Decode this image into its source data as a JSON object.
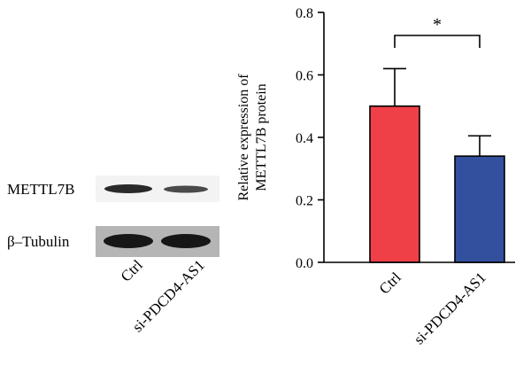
{
  "blot": {
    "row_labels": [
      "METTL7B",
      "β–Tubulin"
    ],
    "lane_labels": [
      "Ctrl",
      "si-PDCD4-AS1"
    ]
  },
  "chart_data": {
    "type": "bar",
    "categories": [
      "Ctrl",
      "si-PDCD4-AS1"
    ],
    "values": [
      0.5,
      0.34
    ],
    "errors": [
      0.12,
      0.065
    ],
    "colors": [
      "#ee4046",
      "#33509f"
    ],
    "ylabel_lines": [
      "Relative expression of",
      "METTL7B protein"
    ],
    "ylim": [
      0,
      0.8
    ],
    "yticks": [
      "0.0",
      "0.2",
      "0.4",
      "0.6",
      "0.8"
    ],
    "significance": "*"
  }
}
